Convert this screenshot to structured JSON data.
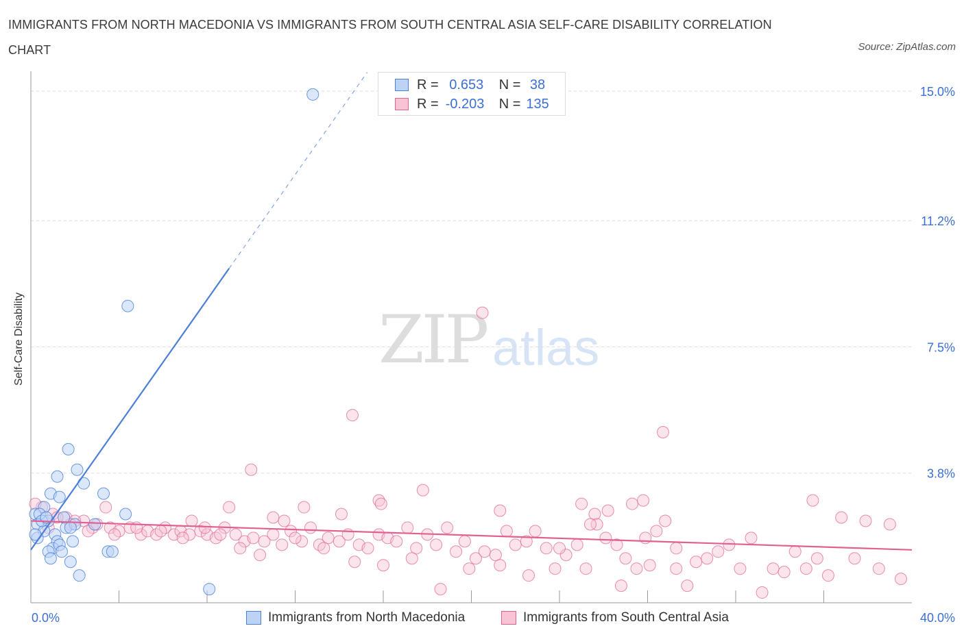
{
  "title": "IMMIGRANTS FROM NORTH MACEDONIA VS IMMIGRANTS FROM SOUTH CENTRAL ASIA SELF-CARE DISABILITY CORRELATION CHART",
  "source": "Source: ZipAtlas.com",
  "watermark": {
    "zip": "ZIP",
    "atlas": "atlas"
  },
  "colors": {
    "blue": "#4a7fd8",
    "blue_fill": "#bdd3f5",
    "pink": "#e0608f",
    "pink_fill": "#f7c3d5",
    "grid": "#dddddd",
    "tick_label": "#3b6fd4"
  },
  "legend": {
    "rows": [
      {
        "r_label": "R =",
        "r_value": " 0.653",
        "n_label": "N =",
        "n_value": " 38"
      },
      {
        "r_label": "R =",
        "r_value": "-0.203",
        "n_label": "N =",
        "n_value": "135"
      }
    ]
  },
  "bottom_legend": [
    "Immigrants from North Macedonia",
    "Immigrants from South Central Asia"
  ],
  "chart_data": {
    "type": "scatter",
    "title": "IMMIGRANTS FROM NORTH MACEDONIA VS IMMIGRANTS FROM SOUTH CENTRAL ASIA SELF-CARE DISABILITY CORRELATION CHART",
    "xlabel": "",
    "ylabel": "Self-Care Disability",
    "xlim": [
      0,
      40
    ],
    "ylim": [
      0,
      15.3
    ],
    "x_tick_labels": [
      "0.0%",
      "40.0%"
    ],
    "y_ticks": [
      3.8,
      7.5,
      11.2,
      15.0
    ],
    "y_tick_labels": [
      "3.8%",
      "7.5%",
      "11.2%",
      "15.0%"
    ],
    "grid": true,
    "legend_position": "top-center",
    "series": [
      {
        "name": "Immigrants from North Macedonia",
        "r": 0.653,
        "n": 38,
        "trend": {
          "x0": 0.0,
          "y0": 1.55,
          "x1": 15.0,
          "y1": 15.3,
          "solid_until_x": 15.0
        },
        "points": [
          [
            12.8,
            14.9
          ],
          [
            4.4,
            8.7
          ],
          [
            1.7,
            4.5
          ],
          [
            2.1,
            3.9
          ],
          [
            1.2,
            3.7
          ],
          [
            2.4,
            3.5
          ],
          [
            0.9,
            3.2
          ],
          [
            1.3,
            3.1
          ],
          [
            3.3,
            3.2
          ],
          [
            4.3,
            2.6
          ],
          [
            0.2,
            2.6
          ],
          [
            0.6,
            2.8
          ],
          [
            0.4,
            2.6
          ],
          [
            1.5,
            2.5
          ],
          [
            0.8,
            2.4
          ],
          [
            0.3,
            2.3
          ],
          [
            2.9,
            2.3
          ],
          [
            1.6,
            2.2
          ],
          [
            2.0,
            2.3
          ],
          [
            0.6,
            2.1
          ],
          [
            1.1,
            2.0
          ],
          [
            0.3,
            1.9
          ],
          [
            1.9,
            1.8
          ],
          [
            1.2,
            1.8
          ],
          [
            1.0,
            1.6
          ],
          [
            1.3,
            1.7
          ],
          [
            1.4,
            1.5
          ],
          [
            0.8,
            1.5
          ],
          [
            3.5,
            1.5
          ],
          [
            3.7,
            1.5
          ],
          [
            0.9,
            1.3
          ],
          [
            1.8,
            1.2
          ],
          [
            2.2,
            0.8
          ],
          [
            8.1,
            0.4
          ],
          [
            0.5,
            2.4
          ],
          [
            1.8,
            2.2
          ],
          [
            0.7,
            2.5
          ],
          [
            0.2,
            2.0
          ]
        ]
      },
      {
        "name": "Immigrants from South Central Asia",
        "r": -0.203,
        "n": 135,
        "trend": {
          "x0": 0.0,
          "y0": 2.4,
          "x1": 40.0,
          "y1": 1.55
        },
        "points": [
          [
            20.5,
            8.5
          ],
          [
            14.6,
            5.5
          ],
          [
            28.7,
            5.0
          ],
          [
            10.0,
            3.9
          ],
          [
            17.8,
            3.3
          ],
          [
            15.8,
            3.0
          ],
          [
            15.9,
            2.9
          ],
          [
            12.4,
            2.8
          ],
          [
            9.0,
            2.8
          ],
          [
            25.0,
            2.9
          ],
          [
            25.6,
            2.6
          ],
          [
            26.2,
            2.7
          ],
          [
            27.3,
            2.9
          ],
          [
            27.8,
            3.0
          ],
          [
            35.5,
            3.0
          ],
          [
            21.3,
            2.7
          ],
          [
            14.1,
            2.6
          ],
          [
            11.0,
            2.5
          ],
          [
            11.5,
            2.4
          ],
          [
            7.3,
            2.4
          ],
          [
            3.4,
            2.8
          ],
          [
            2.4,
            2.4
          ],
          [
            1.0,
            2.6
          ],
          [
            0.5,
            2.8
          ],
          [
            0.2,
            2.9
          ],
          [
            1.6,
            2.5
          ],
          [
            2.0,
            2.4
          ],
          [
            1.8,
            2.3
          ],
          [
            2.8,
            2.2
          ],
          [
            3.0,
            2.3
          ],
          [
            3.6,
            2.2
          ],
          [
            4.0,
            2.1
          ],
          [
            4.5,
            2.2
          ],
          [
            5.0,
            2.0
          ],
          [
            5.3,
            2.1
          ],
          [
            5.7,
            2.0
          ],
          [
            6.1,
            2.2
          ],
          [
            6.5,
            2.0
          ],
          [
            6.8,
            2.1
          ],
          [
            7.2,
            2.0
          ],
          [
            7.7,
            2.1
          ],
          [
            8.0,
            2.0
          ],
          [
            8.4,
            1.9
          ],
          [
            8.8,
            2.2
          ],
          [
            9.3,
            2.0
          ],
          [
            9.7,
            1.8
          ],
          [
            10.1,
            1.9
          ],
          [
            10.6,
            1.8
          ],
          [
            11.0,
            2.0
          ],
          [
            11.4,
            1.7
          ],
          [
            11.8,
            2.1
          ],
          [
            12.3,
            1.8
          ],
          [
            12.7,
            2.2
          ],
          [
            13.1,
            1.7
          ],
          [
            13.5,
            1.9
          ],
          [
            14.0,
            1.8
          ],
          [
            14.4,
            2.0
          ],
          [
            14.9,
            1.7
          ],
          [
            15.3,
            1.6
          ],
          [
            15.8,
            2.0
          ],
          [
            16.2,
            1.9
          ],
          [
            16.6,
            1.8
          ],
          [
            17.1,
            2.2
          ],
          [
            17.5,
            1.6
          ],
          [
            18.0,
            2.0
          ],
          [
            18.4,
            1.7
          ],
          [
            18.9,
            2.2
          ],
          [
            19.3,
            1.5
          ],
          [
            19.7,
            1.8
          ],
          [
            20.2,
            1.3
          ],
          [
            20.6,
            1.5
          ],
          [
            21.1,
            1.4
          ],
          [
            21.6,
            2.1
          ],
          [
            22.0,
            1.7
          ],
          [
            22.5,
            1.8
          ],
          [
            22.9,
            2.1
          ],
          [
            23.4,
            1.6
          ],
          [
            23.8,
            1.0
          ],
          [
            24.3,
            1.4
          ],
          [
            24.8,
            1.7
          ],
          [
            25.2,
            1.0
          ],
          [
            25.7,
            2.3
          ],
          [
            26.1,
            1.9
          ],
          [
            26.6,
            1.7
          ],
          [
            27.0,
            1.3
          ],
          [
            27.5,
            1.0
          ],
          [
            27.9,
            1.9
          ],
          [
            28.4,
            2.1
          ],
          [
            28.8,
            2.4
          ],
          [
            29.3,
            1.6
          ],
          [
            29.8,
            0.5
          ],
          [
            30.2,
            1.2
          ],
          [
            30.7,
            1.3
          ],
          [
            31.2,
            1.5
          ],
          [
            31.7,
            1.7
          ],
          [
            32.2,
            1.0
          ],
          [
            32.7,
            1.9
          ],
          [
            33.2,
            0.3
          ],
          [
            33.7,
            1.0
          ],
          [
            34.2,
            0.9
          ],
          [
            34.7,
            1.5
          ],
          [
            35.2,
            1.0
          ],
          [
            35.7,
            1.3
          ],
          [
            36.2,
            0.8
          ],
          [
            36.8,
            2.5
          ],
          [
            37.4,
            1.3
          ],
          [
            37.9,
            2.4
          ],
          [
            38.5,
            1.0
          ],
          [
            39.0,
            2.3
          ],
          [
            39.5,
            0.7
          ],
          [
            0.8,
            2.2
          ],
          [
            1.2,
            2.5
          ],
          [
            2.6,
            2.1
          ],
          [
            3.8,
            2.0
          ],
          [
            4.8,
            2.2
          ],
          [
            5.9,
            2.1
          ],
          [
            6.9,
            1.9
          ],
          [
            7.9,
            2.2
          ],
          [
            8.6,
            2.0
          ],
          [
            9.5,
            1.6
          ],
          [
            10.4,
            1.4
          ],
          [
            12.0,
            1.9
          ],
          [
            13.3,
            1.6
          ],
          [
            14.7,
            1.2
          ],
          [
            16.0,
            1.1
          ],
          [
            17.3,
            1.3
          ],
          [
            18.6,
            0.4
          ],
          [
            19.9,
            1.0
          ],
          [
            21.3,
            1.1
          ],
          [
            22.6,
            0.8
          ],
          [
            24.0,
            1.6
          ],
          [
            25.4,
            2.3
          ],
          [
            26.8,
            0.5
          ],
          [
            28.1,
            1.1
          ],
          [
            29.3,
            1.0
          ]
        ]
      }
    ]
  }
}
